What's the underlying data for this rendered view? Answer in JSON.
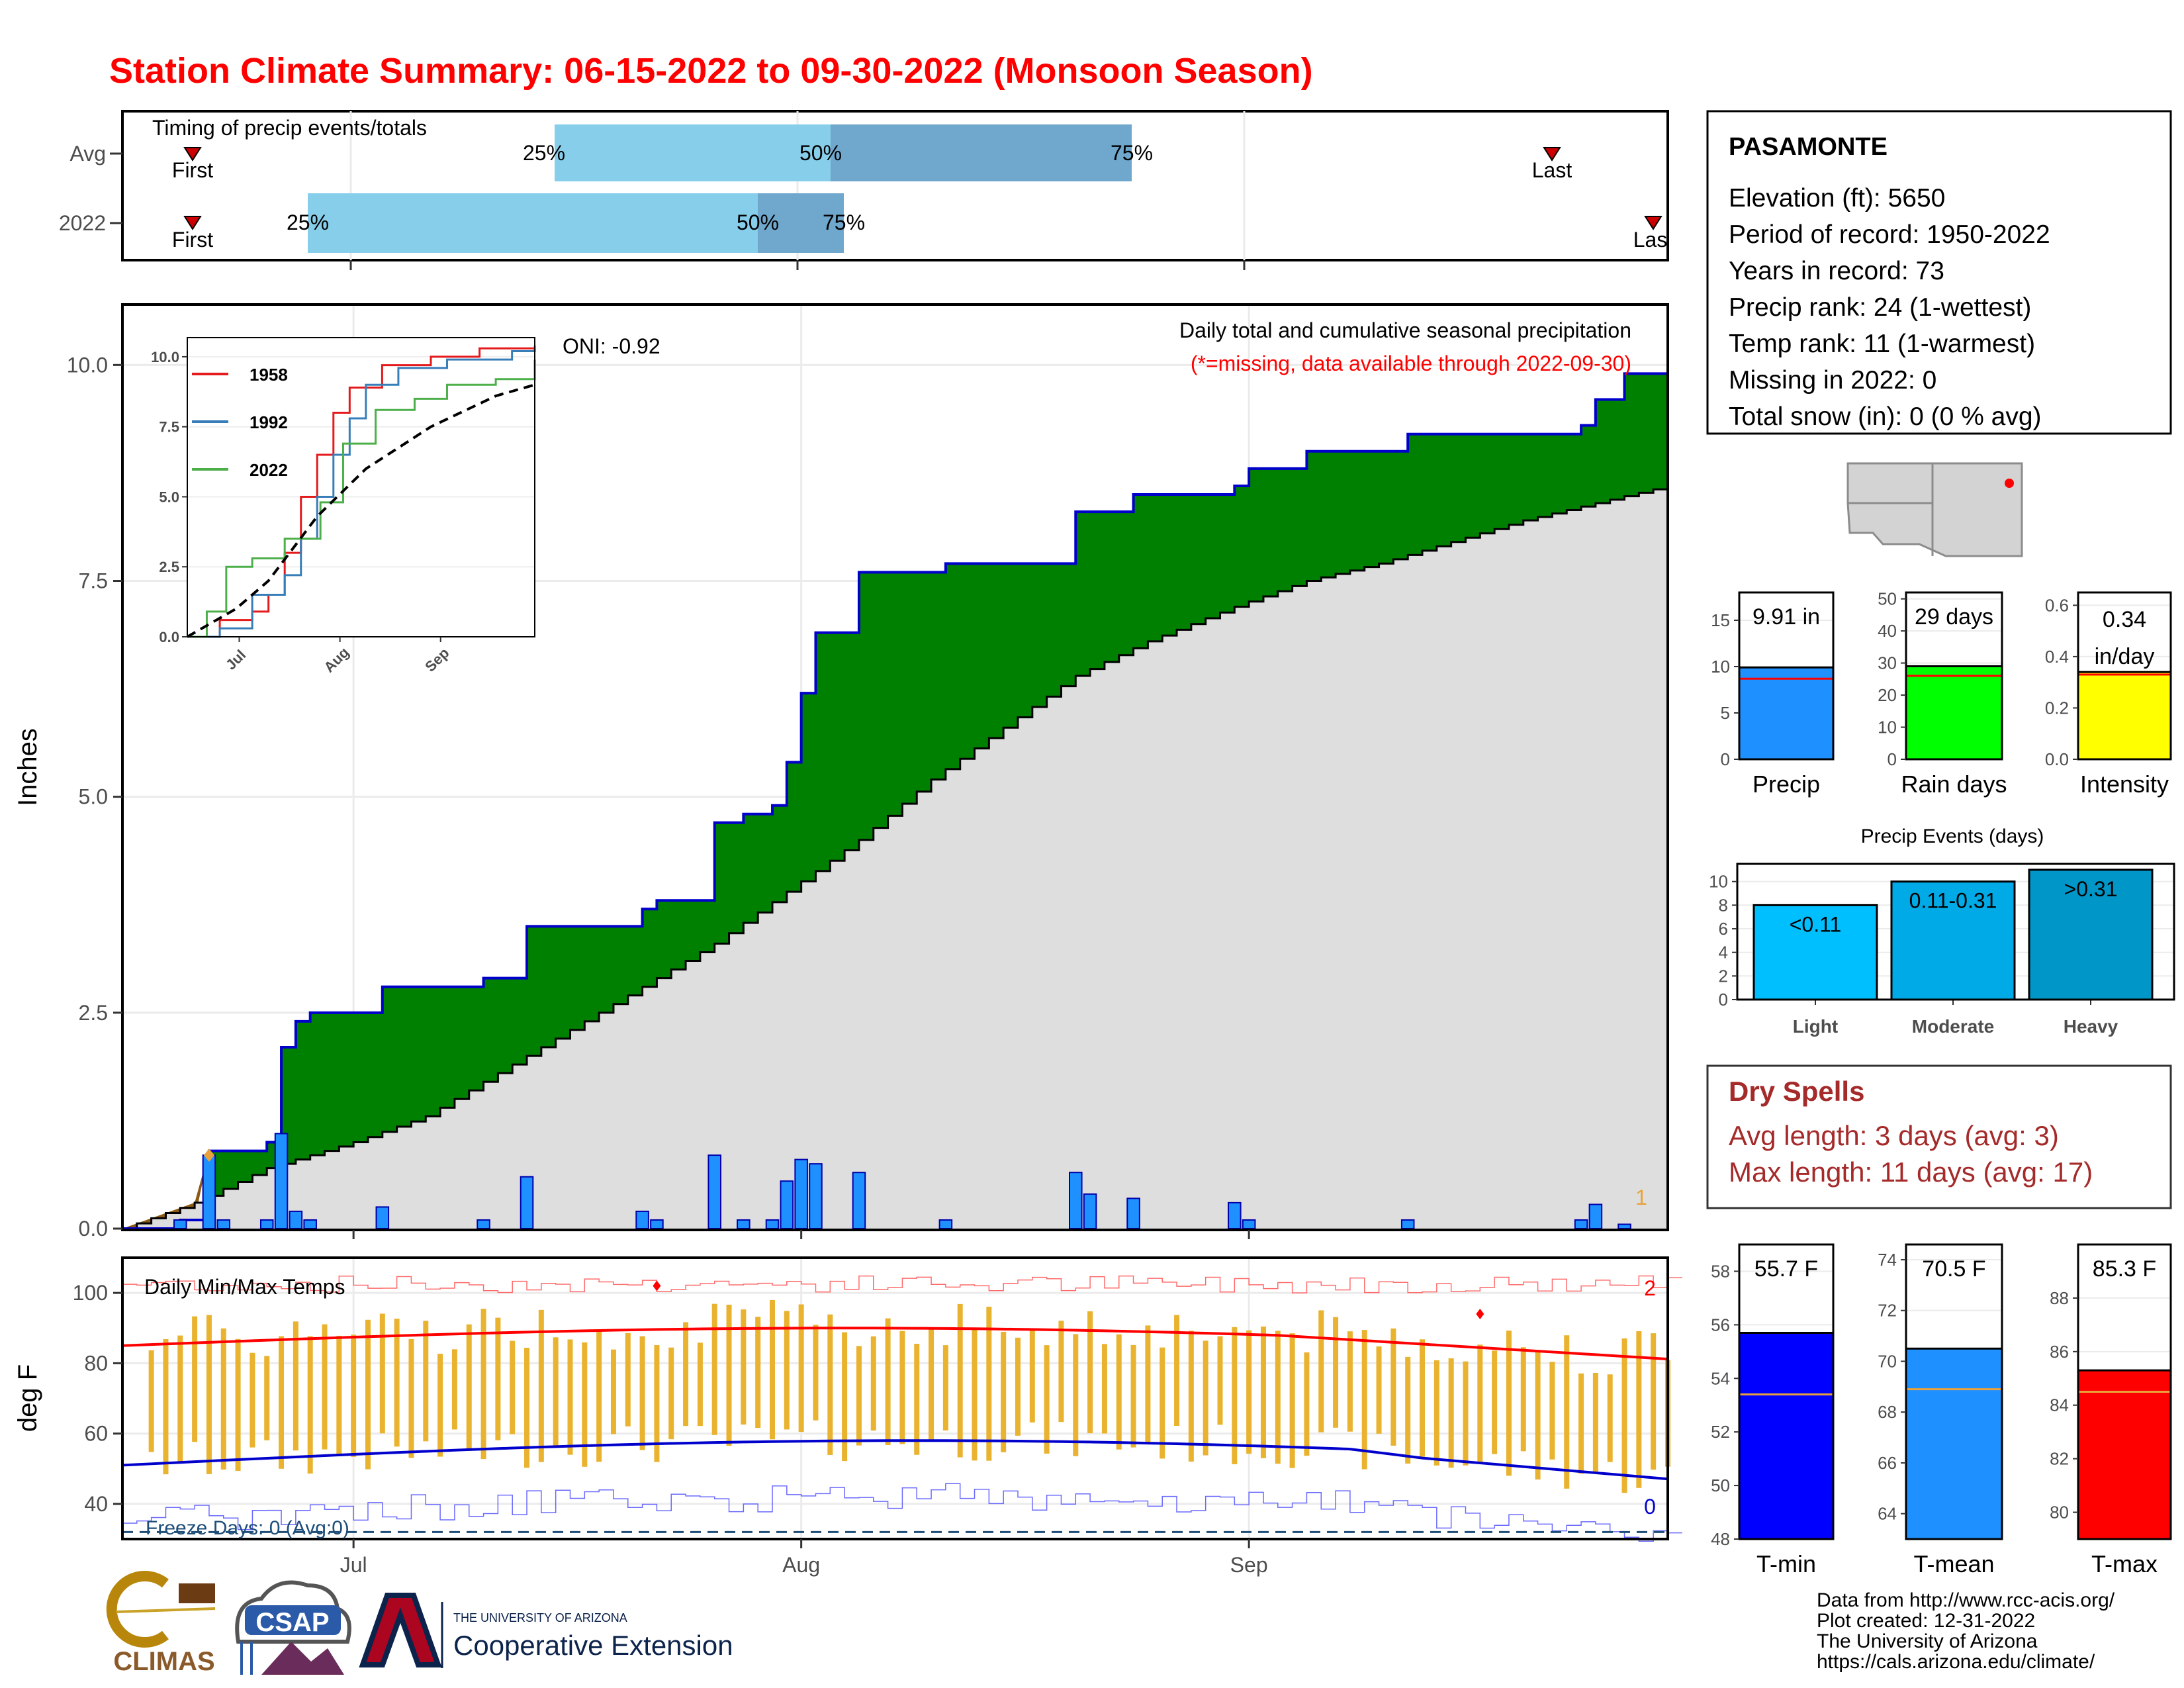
{
  "title": "Station Climate Summary: 06-15-2022 to 09-30-2022 (Monsoon Season)",
  "colors": {
    "title": "#ff0000",
    "precip_total": "#008000",
    "normal_area": "#dedede",
    "daily_bar": "#1e90ff",
    "tmax_line": "#ff0000",
    "tmin_line": "#0000cd",
    "temp_bar": "#e9b32f",
    "dry_spell_text": "#a52a2a",
    "light": "#00bfff",
    "moderate": "#00aae6",
    "heavy": "#0096c8",
    "timing_early": "#87ceeb",
    "timing_late": "#6fa7cd",
    "rain_days": "#00ff00",
    "intensity": "#ffff00"
  },
  "timing": {
    "title": "Timing of precip events/totals",
    "rows": [
      {
        "label": "Avg",
        "first": "First",
        "last": "Last",
        "q25": "25%",
        "q50": "50%",
        "q75": "75%"
      },
      {
        "label": "2022",
        "first": "First",
        "last": "Last",
        "q25": "25%",
        "q50": "50%",
        "q75": "75%"
      }
    ]
  },
  "precip_panel": {
    "ylabel": "Inches",
    "yticks": [
      "0.0",
      "2.5",
      "5.0",
      "7.5",
      "10.0"
    ],
    "oni": "ONI: -0.92",
    "header": "Daily total and cumulative seasonal precipitation",
    "missing_note": "(*=missing, data available through 2022-09-30)",
    "corner_count": "1",
    "inset": {
      "yticks": [
        "0.0",
        "2.5",
        "5.0",
        "7.5",
        "10.0"
      ],
      "xticks": [
        "Jul",
        "Aug",
        "Sep"
      ],
      "legend": [
        "1958",
        "1992",
        "2022"
      ]
    }
  },
  "temp_panel": {
    "title": "Daily Min/Max Temps",
    "ylabel": "deg F",
    "yticks": [
      "40",
      "60",
      "80",
      "100"
    ],
    "xticks": [
      "Jul",
      "Aug",
      "Sep"
    ],
    "freeze_label": "Freeze Days: 0 (Avg:0)",
    "max_count": "2",
    "min_count": "0"
  },
  "station": {
    "name": "PASAMONTE",
    "lines": [
      "Elevation (ft): 5650",
      "Period of record: 1950-2022",
      "Years in record: 73",
      "Precip rank: 24 (1-wettest)",
      "Temp rank: 11 (1-warmest)",
      "Missing in 2022: 0",
      "Total snow (in): 0 (0 % avg)"
    ]
  },
  "season_bars": [
    {
      "label": "Precip",
      "value_label": "9.91 in",
      "ticks": [
        "0",
        "5",
        "10",
        "15"
      ]
    },
    {
      "label": "Rain days",
      "value_label": "29 days",
      "ticks": [
        "0",
        "10",
        "20",
        "30",
        "40",
        "50"
      ]
    },
    {
      "label": "Intensity",
      "value_label": "0.34",
      "value_unit": "in/day",
      "ticks": [
        "0.0",
        "0.2",
        "0.4",
        "0.6"
      ]
    }
  ],
  "events": {
    "title": "Precip Events (days)",
    "yticks": [
      "0",
      "2",
      "4",
      "6",
      "8",
      "10"
    ],
    "bars": [
      {
        "category": "Light",
        "label": "<0.11"
      },
      {
        "category": "Moderate",
        "label": "0.11-0.31"
      },
      {
        "category": "Heavy",
        "label": ">0.31"
      }
    ]
  },
  "dry_spells": {
    "title": "Dry Spells",
    "avg": "Avg length: 3 days (avg: 3)",
    "max": "Max length: 11 days (avg: 17)"
  },
  "temp_bars": [
    {
      "label": "T-min",
      "value_label": "55.7 F",
      "ticks": [
        "48",
        "50",
        "52",
        "54",
        "56",
        "58"
      ]
    },
    {
      "label": "T-mean",
      "value_label": "70.5 F",
      "ticks": [
        "64",
        "66",
        "68",
        "70",
        "72",
        "74"
      ]
    },
    {
      "label": "T-max",
      "value_label": "85.3 F",
      "ticks": [
        "80",
        "82",
        "84",
        "86",
        "88"
      ]
    }
  ],
  "logos": {
    "climas": "CLIMAS",
    "csap": "CSAP",
    "ua_small": "THE UNIVERSITY OF ARIZONA",
    "ua_big": "Cooperative Extension"
  },
  "credits": [
    "Data from http://www.rcc-acis.org/",
    "Plot created: 12-31-2022",
    "The University of Arizona",
    "https://cals.arizona.edu/climate/"
  ],
  "chart_data": {
    "type": "area",
    "title": "Station Climate Summary: 06-15-2022 to 09-30-2022 (Monsoon Season)",
    "ylabel": "Inches",
    "ylim": [
      0,
      10.7
    ],
    "xlim": [
      "2022-06-15",
      "2022-09-30"
    ],
    "cumulative_2022": [
      [
        "2022-06-15",
        0.0
      ],
      [
        "2022-06-18",
        0.0
      ],
      [
        "2022-06-19",
        0.1
      ],
      [
        "2022-06-20",
        0.1
      ],
      [
        "2022-06-21",
        0.9
      ],
      [
        "2022-06-22",
        0.9
      ],
      [
        "2022-06-25",
        1.0
      ],
      [
        "2022-06-26",
        2.1
      ],
      [
        "2022-06-27",
        2.4
      ],
      [
        "2022-06-28",
        2.5
      ],
      [
        "2022-07-02",
        2.5
      ],
      [
        "2022-07-03",
        2.8
      ],
      [
        "2022-07-07",
        2.8
      ],
      [
        "2022-07-10",
        2.9
      ],
      [
        "2022-07-12",
        2.9
      ],
      [
        "2022-07-13",
        3.5
      ],
      [
        "2022-07-20",
        3.5
      ],
      [
        "2022-07-21",
        3.7
      ],
      [
        "2022-07-22",
        3.8
      ],
      [
        "2022-07-25",
        3.8
      ],
      [
        "2022-07-26",
        4.7
      ],
      [
        "2022-07-27",
        4.7
      ],
      [
        "2022-07-28",
        4.8
      ],
      [
        "2022-07-30",
        4.9
      ],
      [
        "2022-07-31",
        5.4
      ],
      [
        "2022-08-01",
        6.2
      ],
      [
        "2022-08-02",
        6.9
      ],
      [
        "2022-08-04",
        6.9
      ],
      [
        "2022-08-05",
        7.6
      ],
      [
        "2022-08-10",
        7.6
      ],
      [
        "2022-08-11",
        7.7
      ],
      [
        "2022-08-19",
        7.7
      ],
      [
        "2022-08-20",
        8.3
      ],
      [
        "2022-08-23",
        8.3
      ],
      [
        "2022-08-24",
        8.5
      ],
      [
        "2022-08-30",
        8.5
      ],
      [
        "2022-08-31",
        8.6
      ],
      [
        "2022-09-01",
        8.8
      ],
      [
        "2022-09-05",
        9.0
      ],
      [
        "2022-09-11",
        9.0
      ],
      [
        "2022-09-12",
        9.2
      ],
      [
        "2022-09-23",
        9.2
      ],
      [
        "2022-09-24",
        9.3
      ],
      [
        "2022-09-25",
        9.6
      ],
      [
        "2022-09-27",
        9.9
      ],
      [
        "2022-09-30",
        9.9
      ]
    ],
    "cumulative_normal": [
      [
        "2022-06-15",
        0.0
      ],
      [
        "2022-06-20",
        0.3
      ],
      [
        "2022-06-25",
        0.7
      ],
      [
        "2022-07-01",
        1.0
      ],
      [
        "2022-07-06",
        1.3
      ],
      [
        "2022-07-11",
        1.8
      ],
      [
        "2022-07-16",
        2.3
      ],
      [
        "2022-07-21",
        2.8
      ],
      [
        "2022-07-26",
        3.3
      ],
      [
        "2022-07-31",
        3.9
      ],
      [
        "2022-08-05",
        4.5
      ],
      [
        "2022-08-10",
        5.2
      ],
      [
        "2022-08-15",
        5.8
      ],
      [
        "2022-08-20",
        6.4
      ],
      [
        "2022-08-25",
        6.8
      ],
      [
        "2022-08-31",
        7.2
      ],
      [
        "2022-09-05",
        7.5
      ],
      [
        "2022-09-10",
        7.7
      ],
      [
        "2022-09-15",
        7.95
      ],
      [
        "2022-09-20",
        8.2
      ],
      [
        "2022-09-25",
        8.4
      ],
      [
        "2022-09-30",
        8.6
      ]
    ],
    "daily_precip": [
      [
        "2022-06-19",
        0.1
      ],
      [
        "2022-06-21",
        0.85
      ],
      [
        "2022-06-22",
        0.1
      ],
      [
        "2022-06-25",
        0.1
      ],
      [
        "2022-06-26",
        1.1
      ],
      [
        "2022-06-27",
        0.2
      ],
      [
        "2022-06-28",
        0.1
      ],
      [
        "2022-07-03",
        0.25
      ],
      [
        "2022-07-10",
        0.1
      ],
      [
        "2022-07-13",
        0.6
      ],
      [
        "2022-07-21",
        0.2
      ],
      [
        "2022-07-22",
        0.1
      ],
      [
        "2022-07-26",
        0.85
      ],
      [
        "2022-07-28",
        0.1
      ],
      [
        "2022-07-30",
        0.1
      ],
      [
        "2022-07-31",
        0.55
      ],
      [
        "2022-08-01",
        0.8
      ],
      [
        "2022-08-02",
        0.75
      ],
      [
        "2022-08-05",
        0.65
      ],
      [
        "2022-08-11",
        0.1
      ],
      [
        "2022-08-20",
        0.65
      ],
      [
        "2022-08-21",
        0.4
      ],
      [
        "2022-08-24",
        0.35
      ],
      [
        "2022-08-31",
        0.3
      ],
      [
        "2022-09-01",
        0.1
      ],
      [
        "2022-09-12",
        0.1
      ],
      [
        "2022-09-24",
        0.1
      ],
      [
        "2022-09-25",
        0.28
      ],
      [
        "2022-09-27",
        0.05
      ]
    ],
    "inset_series": [
      {
        "name": "1958",
        "values": [
          [
            0,
            0
          ],
          [
            10,
            0.6
          ],
          [
            20,
            0.9
          ],
          [
            25,
            1.5
          ],
          [
            30,
            3.0
          ],
          [
            35,
            5.0
          ],
          [
            40,
            6.5
          ],
          [
            45,
            8.0
          ],
          [
            50,
            8.9
          ],
          [
            60,
            9.7
          ],
          [
            75,
            10.0
          ],
          [
            90,
            10.3
          ],
          [
            107,
            10.4
          ]
        ]
      },
      {
        "name": "1992",
        "values": [
          [
            0,
            0
          ],
          [
            10,
            0.3
          ],
          [
            20,
            1.5
          ],
          [
            30,
            2.2
          ],
          [
            35,
            3.5
          ],
          [
            40,
            5.0
          ],
          [
            45,
            6.5
          ],
          [
            50,
            7.8
          ],
          [
            55,
            9.0
          ],
          [
            65,
            9.6
          ],
          [
            80,
            9.9
          ],
          [
            100,
            10.2
          ],
          [
            107,
            10.4
          ]
        ]
      },
      {
        "name": "2022",
        "values": [
          [
            0,
            0
          ],
          [
            6,
            0.9
          ],
          [
            12,
            2.5
          ],
          [
            20,
            2.8
          ],
          [
            30,
            3.5
          ],
          [
            41,
            4.8
          ],
          [
            48,
            6.9
          ],
          [
            58,
            8.1
          ],
          [
            70,
            8.5
          ],
          [
            80,
            9.0
          ],
          [
            95,
            9.2
          ],
          [
            107,
            9.9
          ]
        ]
      }
    ],
    "inset_normal": [
      [
        0,
        0
      ],
      [
        15,
        1.0
      ],
      [
        25,
        2.0
      ],
      [
        40,
        4.3
      ],
      [
        55,
        6.0
      ],
      [
        75,
        7.5
      ],
      [
        95,
        8.6
      ],
      [
        107,
        9.0
      ]
    ],
    "season_totals": {
      "precip_in": 9.91,
      "precip_avg_in": 8.7,
      "rain_days": 29,
      "rain_days_avg": 26,
      "intensity_in_per_day": 0.34,
      "intensity_avg": 0.33
    },
    "precip_events_days": {
      "Light": 8,
      "Moderate": 10,
      "Heavy": 11
    },
    "temperature_means": {
      "tmin": 55.7,
      "tmin_avg": 53.4,
      "tmean": 70.5,
      "tmean_avg": 68.9,
      "tmax": 85.3,
      "tmax_avg": 84.5
    },
    "temp_ylim": [
      30,
      110
    ],
    "freeze_threshold_f": 32
  }
}
